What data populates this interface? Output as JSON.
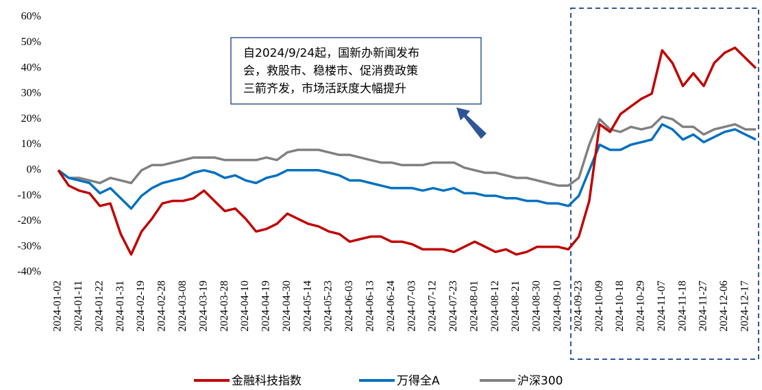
{
  "chart_data": {
    "type": "line",
    "categories": [
      "2024-01-02",
      null,
      "2024-01-11",
      null,
      "2024-01-22",
      null,
      "2024-01-31",
      null,
      "2024-02-19",
      null,
      "2024-02-28",
      null,
      "2024-03-08",
      null,
      "2024-03-19",
      null,
      "2024-03-28",
      null,
      "2024-04-10",
      null,
      "2024-04-19",
      null,
      "2024-04-30",
      null,
      "2024-05-14",
      null,
      "2024-05-23",
      null,
      "2024-06-03",
      null,
      "2024-06-13",
      null,
      "2024-06-24",
      null,
      "2024-07-03",
      null,
      "2024-07-12",
      null,
      "2024-07-23",
      null,
      "2024-08-01",
      null,
      "2024-08-12",
      null,
      "2024-08-21",
      null,
      "2024-08-30",
      null,
      "2024-09-10",
      null,
      "2024-09-23",
      null,
      "2024-10-09",
      null,
      "2024-10-18",
      null,
      "2024-10-29",
      null,
      "2024-11-07",
      null,
      "2024-11-18",
      null,
      "2024-11-27",
      null,
      "2024-12-06",
      null,
      "2024-12-17",
      null
    ],
    "series": [
      {
        "name": "金融科技指数",
        "color": "#c00000",
        "values": [
          0,
          -6,
          -8,
          -9,
          -14,
          -13,
          -25,
          -33,
          -24,
          -19,
          -13,
          -12,
          -12,
          -11,
          -8,
          -12,
          -16,
          -15,
          -19,
          -24,
          -23,
          -21,
          -17,
          -19,
          -21,
          -22,
          -24,
          -25,
          -28,
          -27,
          -26,
          -26,
          -28,
          -28,
          -29,
          -31,
          -31,
          -31,
          -32,
          -30,
          -28,
          -30,
          -32,
          -31,
          -33,
          -32,
          -30,
          -30,
          -30,
          -31,
          -26,
          -12,
          18,
          15,
          22,
          25,
          28,
          30,
          47,
          42,
          33,
          38,
          33,
          42,
          46,
          48,
          44,
          40
        ]
      },
      {
        "name": "万得全A",
        "color": "#0070c0",
        "values": [
          0,
          -3,
          -4,
          -5,
          -9,
          -7,
          -11,
          -15,
          -10,
          -7,
          -5,
          -4,
          -3,
          -1,
          0,
          -1,
          -3,
          -2,
          -4,
          -5,
          -3,
          -2,
          0,
          0,
          0,
          0,
          -1,
          -2,
          -4,
          -4,
          -5,
          -6,
          -7,
          -7,
          -7,
          -8,
          -7,
          -8,
          -7,
          -9,
          -9,
          -10,
          -10,
          -11,
          -11,
          -12,
          -12,
          -13,
          -13,
          -14,
          -10,
          0,
          10,
          8,
          8,
          10,
          11,
          12,
          18,
          16,
          12,
          14,
          11,
          13,
          15,
          16,
          14,
          12
        ]
      },
      {
        "name": "沪深300",
        "color": "#808080",
        "values": [
          0,
          -3,
          -3,
          -4,
          -5,
          -3,
          -4,
          -5,
          0,
          2,
          2,
          3,
          4,
          5,
          5,
          5,
          4,
          4,
          4,
          4,
          5,
          4,
          7,
          8,
          8,
          8,
          7,
          6,
          6,
          5,
          4,
          3,
          3,
          2,
          2,
          2,
          3,
          3,
          3,
          1,
          0,
          -1,
          -1,
          -2,
          -3,
          -3,
          -4,
          -5,
          -6,
          -6,
          -3,
          10,
          20,
          16,
          15,
          17,
          16,
          17,
          21,
          20,
          17,
          17,
          14,
          16,
          17,
          18,
          16,
          16
        ]
      }
    ],
    "ylim": [
      -40,
      60
    ],
    "yticks": [
      {
        "value": -40,
        "label": "-40%"
      },
      {
        "value": -30,
        "label": "-30%"
      },
      {
        "value": -20,
        "label": "-20%"
      },
      {
        "value": -10,
        "label": "-10%"
      },
      {
        "value": 0,
        "label": "0%"
      },
      {
        "value": 10,
        "label": "10%"
      },
      {
        "value": 20,
        "label": "20%"
      },
      {
        "value": 30,
        "label": "30%"
      },
      {
        "value": 40,
        "label": "40%"
      },
      {
        "value": 50,
        "label": "50%"
      },
      {
        "value": 60,
        "label": "60%"
      }
    ],
    "annotation": [
      "自2024/9/24起，国新办新闻发布",
      "会，救股市、稳楼市、促消费政策",
      "三箭齐发，市场活跃度大幅提升"
    ],
    "legend": "bottom"
  }
}
